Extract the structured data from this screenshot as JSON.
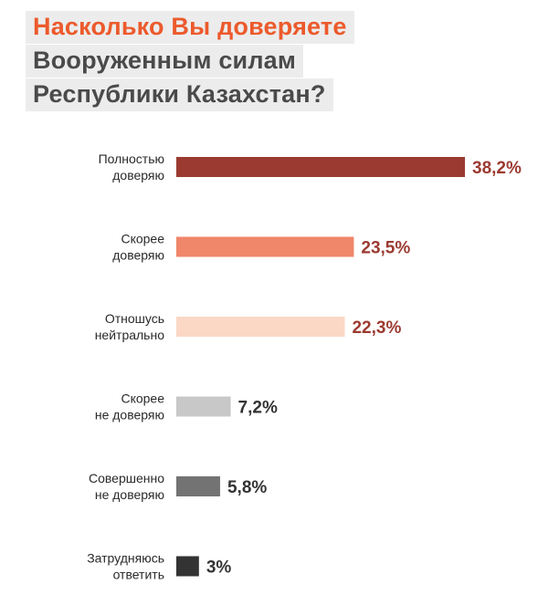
{
  "title": {
    "line1": "Насколько Вы доверяете",
    "line2": "Вооруженным силам",
    "line3": "Республики Казахстан?"
  },
  "chart_data": {
    "type": "bar",
    "orientation": "horizontal",
    "categories": [
      [
        "Полностью",
        "доверяю"
      ],
      [
        "Скорее",
        "доверяю"
      ],
      [
        "Отношусь",
        "нейтрально"
      ],
      [
        "Скорее",
        "не доверяю"
      ],
      [
        "Совершенно",
        "не доверяю"
      ],
      [
        "Затрудняюсь",
        "ответить"
      ]
    ],
    "values": [
      38.2,
      23.5,
      22.3,
      7.2,
      5.8,
      3
    ],
    "value_labels": [
      "38,2%",
      "23,5%",
      "22,3%",
      "7,2%",
      "5,8%",
      "3%"
    ],
    "bar_colors": [
      "#9b3a30",
      "#f0866a",
      "#fbd7c6",
      "#c8c8c8",
      "#737373",
      "#333333"
    ],
    "label_colors": [
      "#9b3a30",
      "#9b3a30",
      "#9b3a30",
      "#333333",
      "#333333",
      "#333333"
    ],
    "xlim": [
      0,
      38.2
    ],
    "grid": false,
    "legend": "none"
  }
}
